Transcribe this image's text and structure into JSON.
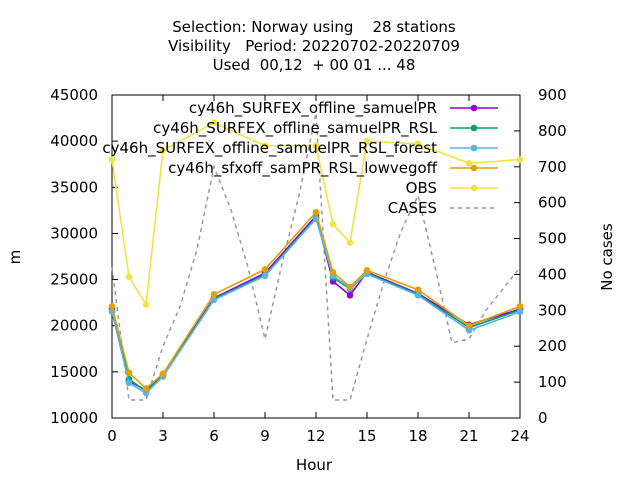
{
  "chart_data": {
    "type": "line",
    "title_lines": [
      "Selection: Norway using    28 stations",
      "Visibility   Period: 20220702-20220709",
      "Used  00,12  + 00 01 ... 48"
    ],
    "xlabel": "Hour",
    "ylabel": "m",
    "y2label": "No cases",
    "xlim": [
      0,
      24
    ],
    "ylim": [
      10000,
      45000
    ],
    "y2lim": [
      0,
      900
    ],
    "x_ticks": [
      0,
      3,
      6,
      9,
      12,
      15,
      18,
      21,
      24
    ],
    "y_ticks": [
      10000,
      15000,
      20000,
      25000,
      30000,
      35000,
      40000,
      45000
    ],
    "y2_ticks": [
      0,
      100,
      200,
      300,
      400,
      500,
      600,
      700,
      800,
      900
    ],
    "legend_position": "top-right",
    "x": [
      0,
      1,
      2,
      3,
      6,
      9,
      12,
      13,
      14,
      15,
      18,
      21,
      24
    ],
    "series": [
      {
        "name": "cy46h_SURFEX_offline_samuelPR",
        "color": "#9400d3",
        "marker": "circle",
        "values": [
          21800,
          14000,
          13000,
          14700,
          23000,
          25700,
          31900,
          24800,
          23300,
          25800,
          23500,
          20100,
          21800
        ]
      },
      {
        "name": "cy46h_SURFEX_offline_samuelPR_RSL",
        "color": "#009e73",
        "marker": "circle",
        "values": [
          21600,
          14200,
          12900,
          14600,
          22900,
          25500,
          31700,
          25200,
          24000,
          25700,
          23400,
          19800,
          21700
        ]
      },
      {
        "name": "cy46h_SURFEX_offline_samuelPR_RSL_forest",
        "color": "#56b4e9",
        "marker": "circle",
        "values": [
          21500,
          13800,
          12700,
          14500,
          22800,
          25400,
          31600,
          25400,
          24100,
          25600,
          23300,
          19500,
          21500
        ]
      },
      {
        "name": "cy46h_sfxoff_samPR_RSL_lowvegoff",
        "color": "#e69f00",
        "marker": "circle",
        "values": [
          22100,
          14900,
          13200,
          14800,
          23400,
          26100,
          32300,
          25800,
          24200,
          26000,
          23900,
          20000,
          22100
        ]
      },
      {
        "name": "OBS",
        "color": "#f0e442",
        "marker": "circle",
        "values": [
          38000,
          25300,
          22300,
          39000,
          42000,
          39500,
          39500,
          31000,
          29000,
          40000,
          39700,
          37600,
          38000
        ]
      }
    ],
    "cases": {
      "name": "CASES",
      "color": "#999999",
      "axis": "y2",
      "style": "dashed",
      "x": [
        0,
        1,
        2,
        3,
        4,
        5,
        6,
        7,
        8,
        9,
        10,
        11,
        12,
        13,
        14,
        15,
        16,
        17,
        18,
        19,
        20,
        21,
        22,
        23,
        24
      ],
      "values": [
        420,
        50,
        50,
        200,
        310,
        470,
        700,
        580,
        420,
        220,
        430,
        620,
        850,
        50,
        50,
        220,
        380,
        520,
        620,
        420,
        210,
        220,
        300,
        360,
        420
      ]
    }
  }
}
